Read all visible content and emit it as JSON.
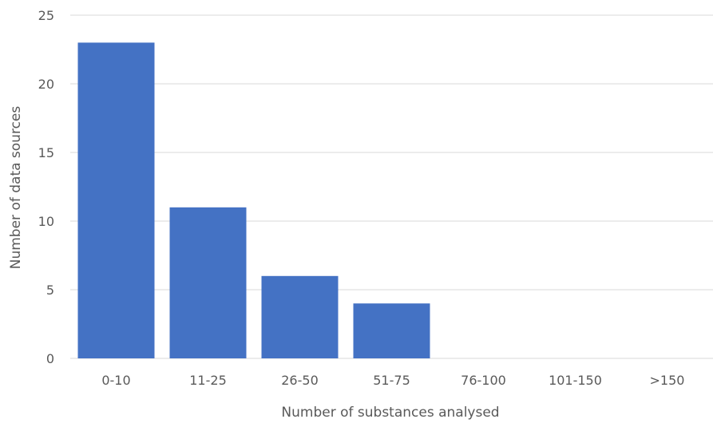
{
  "chart_data": {
    "type": "bar",
    "categories": [
      "0-10",
      "11-25",
      "26-50",
      "51-75",
      "76-100",
      "101-150",
      ">150"
    ],
    "values": [
      23,
      11,
      6,
      4,
      0,
      0,
      0
    ],
    "title": "",
    "xlabel": "Number of substances analysed",
    "ylabel": "Number of data sources",
    "ylim": [
      0,
      25
    ],
    "yticks": [
      0,
      5,
      10,
      15,
      20,
      25
    ],
    "grid": true,
    "bar_color": "#4472C4",
    "grid_color": "#D9D9D9",
    "text_color": "#595959"
  }
}
